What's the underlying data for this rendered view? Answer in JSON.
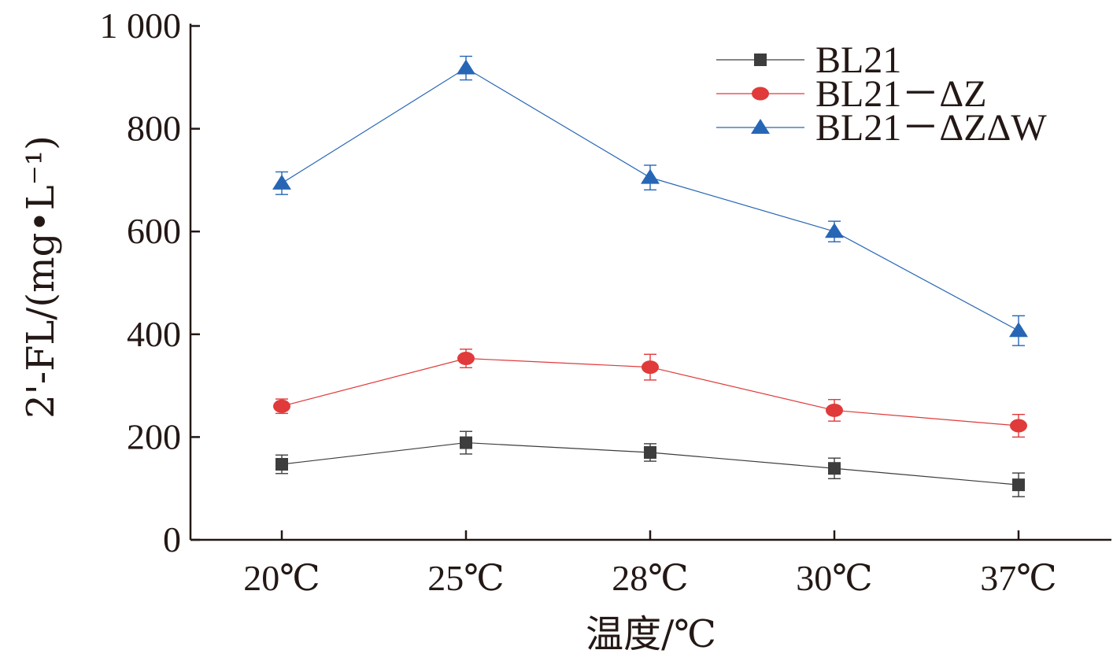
{
  "chart_data": {
    "type": "line",
    "categories": [
      "20℃",
      "25℃",
      "28℃",
      "30℃",
      "37℃"
    ],
    "xlabel": "温度/℃",
    "ylabel": "2'-FL/(mg•L⁻¹)",
    "ylim": [
      0,
      1000
    ],
    "yticks": [
      0,
      200,
      400,
      600,
      800,
      1000
    ],
    "ytick_labels": [
      "0",
      "200",
      "400",
      "600",
      "800",
      "1 000"
    ],
    "legend_position": "top-right",
    "grid": false,
    "series": [
      {
        "name": "BL21",
        "marker": "square",
        "color": "#3d3d3d",
        "values": [
          147,
          189,
          170,
          139,
          107
        ],
        "errors": [
          18,
          22,
          17,
          20,
          23
        ]
      },
      {
        "name": "BL21－ΔZ",
        "marker": "circle",
        "color": "#e03a3a",
        "values": [
          260,
          353,
          336,
          252,
          222
        ],
        "errors": [
          14,
          18,
          25,
          21,
          22
        ]
      },
      {
        "name": "BL21－ΔZΔW",
        "marker": "triangle",
        "color": "#2766b5",
        "values": [
          694,
          918,
          705,
          600,
          407
        ],
        "errors": [
          22,
          23,
          24,
          20,
          29
        ]
      }
    ]
  }
}
